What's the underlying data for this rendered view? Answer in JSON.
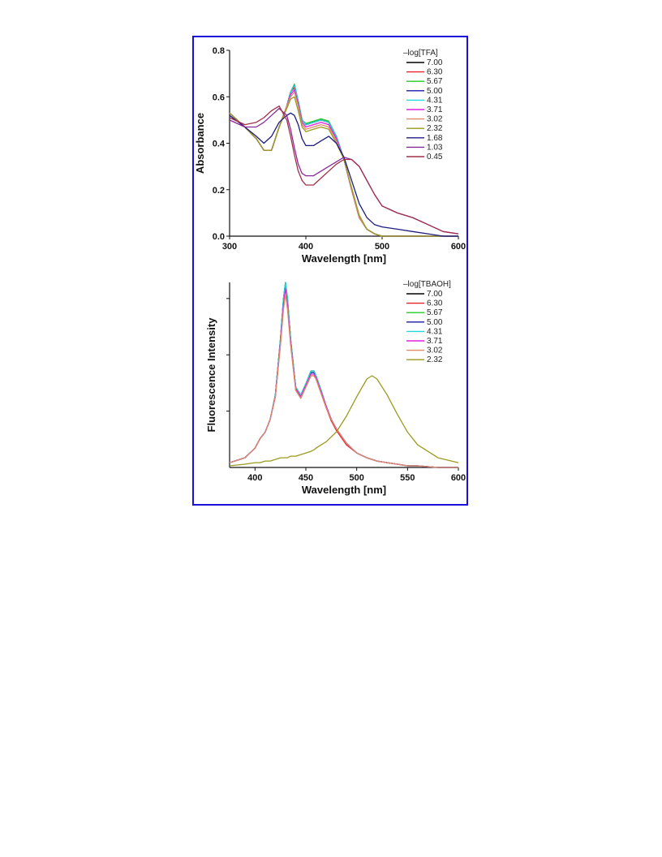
{
  "chart_data": [
    {
      "type": "line",
      "xlabel": "Wavelength [nm]",
      "ylabel": "Absorbance",
      "xlim": [
        300,
        600
      ],
      "ylim": [
        0,
        0.8
      ],
      "xticks": [
        300,
        400,
        500,
        600
      ],
      "yticks": [
        0.0,
        0.2,
        0.4,
        0.6,
        0.8
      ],
      "xtick_labels": [
        "300",
        "400",
        "500",
        "600"
      ],
      "ytick_labels": [
        "0.0",
        "0.2",
        "0.4",
        "0.6",
        "0.8"
      ],
      "legend_title": "–log[TFA]",
      "legend_position": "top-right",
      "grid": false,
      "x": [
        300,
        320,
        335,
        345,
        355,
        365,
        375,
        380,
        385,
        390,
        395,
        400,
        410,
        420,
        430,
        440,
        450,
        460,
        470,
        480,
        490,
        500,
        520,
        540,
        560,
        580,
        600
      ],
      "series": [
        {
          "name": "7.00",
          "color": "#000000",
          "values": [
            0.53,
            0.47,
            0.42,
            0.37,
            0.37,
            0.47,
            0.56,
            0.62,
            0.65,
            0.58,
            0.5,
            0.48,
            0.49,
            0.5,
            0.49,
            0.43,
            0.33,
            0.2,
            0.08,
            0.03,
            0.01,
            0.0,
            0.0,
            0.0,
            0.0,
            0.0,
            0.0
          ]
        },
        {
          "name": "6.30",
          "color": "#e8202a",
          "values": [
            0.53,
            0.47,
            0.42,
            0.37,
            0.37,
            0.47,
            0.56,
            0.62,
            0.64,
            0.58,
            0.5,
            0.48,
            0.49,
            0.5,
            0.49,
            0.43,
            0.33,
            0.2,
            0.08,
            0.03,
            0.01,
            0.0,
            0.0,
            0.0,
            0.0,
            0.0,
            0.0
          ]
        },
        {
          "name": "5.67",
          "color": "#22cc22",
          "values": [
            0.53,
            0.47,
            0.42,
            0.37,
            0.37,
            0.47,
            0.56,
            0.62,
            0.655,
            0.58,
            0.5,
            0.485,
            0.495,
            0.505,
            0.495,
            0.43,
            0.33,
            0.2,
            0.08,
            0.03,
            0.01,
            0.0,
            0.0,
            0.0,
            0.0,
            0.0,
            0.0
          ]
        },
        {
          "name": "5.00",
          "color": "#1a1aa8",
          "values": [
            0.53,
            0.47,
            0.42,
            0.37,
            0.37,
            0.47,
            0.56,
            0.62,
            0.65,
            0.58,
            0.5,
            0.48,
            0.49,
            0.5,
            0.49,
            0.43,
            0.33,
            0.2,
            0.08,
            0.03,
            0.01,
            0.0,
            0.0,
            0.0,
            0.0,
            0.0,
            0.0
          ]
        },
        {
          "name": "4.31",
          "color": "#22d8d8",
          "values": [
            0.53,
            0.47,
            0.42,
            0.37,
            0.37,
            0.47,
            0.56,
            0.62,
            0.65,
            0.58,
            0.5,
            0.48,
            0.49,
            0.5,
            0.49,
            0.43,
            0.33,
            0.2,
            0.08,
            0.03,
            0.01,
            0.0,
            0.0,
            0.0,
            0.0,
            0.0,
            0.0
          ]
        },
        {
          "name": "3.71",
          "color": "#e020e0",
          "values": [
            0.53,
            0.47,
            0.42,
            0.37,
            0.37,
            0.47,
            0.56,
            0.61,
            0.63,
            0.57,
            0.49,
            0.47,
            0.48,
            0.49,
            0.48,
            0.42,
            0.33,
            0.2,
            0.08,
            0.03,
            0.01,
            0.0,
            0.0,
            0.0,
            0.0,
            0.0,
            0.0
          ]
        },
        {
          "name": "3.02",
          "color": "#e08a6a",
          "values": [
            0.53,
            0.47,
            0.42,
            0.37,
            0.37,
            0.47,
            0.56,
            0.6,
            0.62,
            0.56,
            0.48,
            0.46,
            0.47,
            0.48,
            0.47,
            0.41,
            0.33,
            0.2,
            0.08,
            0.03,
            0.01,
            0.0,
            0.0,
            0.0,
            0.0,
            0.0,
            0.0
          ]
        },
        {
          "name": "2.32",
          "color": "#9a9a20",
          "values": [
            0.53,
            0.47,
            0.42,
            0.37,
            0.37,
            0.47,
            0.55,
            0.59,
            0.6,
            0.54,
            0.47,
            0.45,
            0.46,
            0.47,
            0.46,
            0.4,
            0.33,
            0.21,
            0.09,
            0.03,
            0.01,
            0.0,
            0.0,
            0.0,
            0.0,
            0.0,
            0.0
          ]
        },
        {
          "name": "1.68",
          "color": "#1c1c80",
          "values": [
            0.52,
            0.47,
            0.43,
            0.4,
            0.43,
            0.49,
            0.52,
            0.53,
            0.52,
            0.48,
            0.42,
            0.39,
            0.39,
            0.41,
            0.43,
            0.4,
            0.34,
            0.24,
            0.14,
            0.08,
            0.05,
            0.04,
            0.03,
            0.02,
            0.01,
            0.0,
            0.0
          ]
        },
        {
          "name": "1.03",
          "color": "#8a2a9a",
          "values": [
            0.5,
            0.47,
            0.47,
            0.49,
            0.52,
            0.55,
            0.52,
            0.46,
            0.38,
            0.31,
            0.27,
            0.26,
            0.26,
            0.28,
            0.3,
            0.32,
            0.34,
            0.33,
            0.3,
            0.24,
            0.18,
            0.13,
            0.1,
            0.08,
            0.05,
            0.02,
            0.01
          ]
        },
        {
          "name": "0.45",
          "color": "#a0304a",
          "values": [
            0.51,
            0.48,
            0.49,
            0.51,
            0.54,
            0.56,
            0.5,
            0.43,
            0.35,
            0.28,
            0.24,
            0.22,
            0.22,
            0.25,
            0.28,
            0.31,
            0.33,
            0.33,
            0.3,
            0.24,
            0.18,
            0.13,
            0.1,
            0.08,
            0.05,
            0.02,
            0.01
          ]
        }
      ]
    },
    {
      "type": "line",
      "xlabel": "Wavelength [nm]",
      "ylabel": "Fluorescence Intensity",
      "xlim": [
        375,
        600
      ],
      "ylim": [
        0,
        1.15
      ],
      "xticks": [
        400,
        450,
        500,
        550,
        600
      ],
      "xtick_labels": [
        "400",
        "450",
        "500",
        "550",
        "600"
      ],
      "legend_title": "–log[TBAOH]",
      "legend_position": "top-right",
      "grid": false,
      "x": [
        375,
        390,
        400,
        405,
        410,
        415,
        420,
        425,
        428,
        430,
        432,
        435,
        440,
        445,
        450,
        455,
        458,
        460,
        465,
        470,
        475,
        480,
        490,
        500,
        510,
        515,
        520,
        530,
        540,
        550,
        560,
        580,
        600
      ],
      "series": [
        {
          "name": "7.00",
          "color": "#000000",
          "values": [
            0.03,
            0.06,
            0.12,
            0.18,
            0.22,
            0.3,
            0.45,
            0.8,
            1.05,
            1.15,
            1.05,
            0.8,
            0.5,
            0.45,
            0.52,
            0.6,
            0.6,
            0.57,
            0.48,
            0.38,
            0.3,
            0.24,
            0.15,
            0.09,
            0.06,
            0.05,
            0.04,
            0.03,
            0.02,
            0.01,
            0.01,
            0.0,
            0.0
          ]
        },
        {
          "name": "6.30",
          "color": "#e8202a",
          "values": [
            0.03,
            0.06,
            0.12,
            0.18,
            0.22,
            0.3,
            0.44,
            0.77,
            1.0,
            1.1,
            1.0,
            0.77,
            0.48,
            0.43,
            0.5,
            0.57,
            0.57,
            0.55,
            0.46,
            0.37,
            0.29,
            0.23,
            0.14,
            0.09,
            0.06,
            0.05,
            0.04,
            0.03,
            0.02,
            0.01,
            0.01,
            0.0,
            0.0
          ]
        },
        {
          "name": "5.67",
          "color": "#22cc22",
          "values": [
            0.03,
            0.06,
            0.12,
            0.18,
            0.22,
            0.3,
            0.45,
            0.8,
            1.04,
            1.14,
            1.04,
            0.8,
            0.5,
            0.45,
            0.52,
            0.59,
            0.59,
            0.57,
            0.48,
            0.38,
            0.3,
            0.24,
            0.15,
            0.09,
            0.06,
            0.05,
            0.04,
            0.03,
            0.02,
            0.01,
            0.01,
            0.0,
            0.0
          ]
        },
        {
          "name": "5.00",
          "color": "#1a1aa8",
          "values": [
            0.03,
            0.06,
            0.12,
            0.18,
            0.22,
            0.3,
            0.45,
            0.79,
            1.03,
            1.13,
            1.03,
            0.79,
            0.49,
            0.44,
            0.51,
            0.59,
            0.59,
            0.56,
            0.47,
            0.38,
            0.3,
            0.24,
            0.15,
            0.09,
            0.06,
            0.05,
            0.04,
            0.03,
            0.02,
            0.01,
            0.01,
            0.0,
            0.0
          ]
        },
        {
          "name": "4.31",
          "color": "#22d8d8",
          "values": [
            0.03,
            0.06,
            0.12,
            0.18,
            0.22,
            0.3,
            0.45,
            0.8,
            1.05,
            1.15,
            1.05,
            0.8,
            0.5,
            0.45,
            0.52,
            0.6,
            0.6,
            0.57,
            0.48,
            0.38,
            0.3,
            0.24,
            0.15,
            0.09,
            0.06,
            0.05,
            0.04,
            0.03,
            0.02,
            0.01,
            0.01,
            0.0,
            0.0
          ]
        },
        {
          "name": "3.71",
          "color": "#e020e0",
          "values": [
            0.03,
            0.06,
            0.12,
            0.18,
            0.22,
            0.3,
            0.44,
            0.78,
            1.01,
            1.11,
            1.01,
            0.78,
            0.49,
            0.44,
            0.51,
            0.58,
            0.58,
            0.56,
            0.47,
            0.38,
            0.3,
            0.24,
            0.15,
            0.09,
            0.06,
            0.05,
            0.04,
            0.03,
            0.02,
            0.01,
            0.01,
            0.0,
            0.0
          ]
        },
        {
          "name": "3.02",
          "color": "#e08a6a",
          "values": [
            0.03,
            0.06,
            0.12,
            0.18,
            0.22,
            0.3,
            0.44,
            0.76,
            0.98,
            1.08,
            0.98,
            0.76,
            0.48,
            0.43,
            0.5,
            0.57,
            0.57,
            0.55,
            0.46,
            0.37,
            0.3,
            0.24,
            0.15,
            0.09,
            0.06,
            0.05,
            0.04,
            0.03,
            0.02,
            0.01,
            0.01,
            0.0,
            0.0
          ]
        },
        {
          "name": "2.32",
          "color": "#9a9a20",
          "values": [
            0.01,
            0.02,
            0.03,
            0.03,
            0.04,
            0.04,
            0.05,
            0.06,
            0.06,
            0.06,
            0.06,
            0.07,
            0.07,
            0.08,
            0.09,
            0.1,
            0.11,
            0.12,
            0.14,
            0.16,
            0.19,
            0.22,
            0.32,
            0.44,
            0.55,
            0.57,
            0.55,
            0.45,
            0.33,
            0.22,
            0.14,
            0.06,
            0.03
          ]
        }
      ]
    }
  ]
}
